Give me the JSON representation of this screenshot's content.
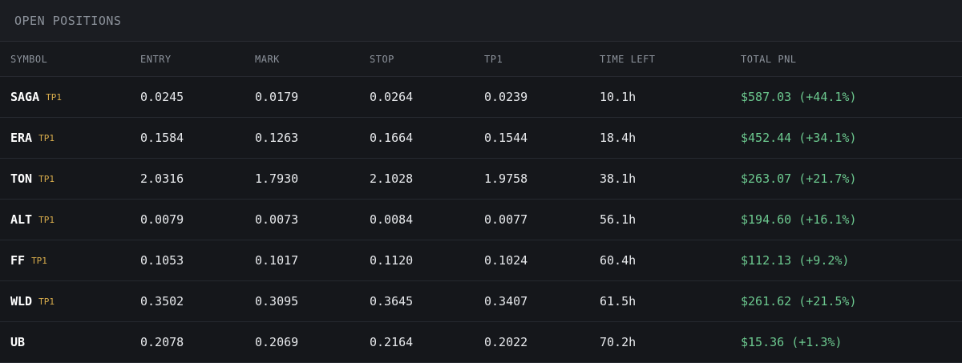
{
  "header": {
    "title": "OPEN POSITIONS"
  },
  "table": {
    "columns": [
      "SYMBOL",
      "ENTRY",
      "MARK",
      "STOP",
      "TP1",
      "TIME LEFT",
      "TOTAL PNL"
    ],
    "rows": [
      {
        "symbol": "SAGA",
        "badge": "TP1",
        "cells": [
          "0.0245",
          "0.0179",
          "0.0264",
          "0.0239",
          "10.1h"
        ],
        "pnl": "$587.03 (+44.1%)"
      },
      {
        "symbol": "ERA",
        "badge": "TP1",
        "cells": [
          "0.1584",
          "0.1263",
          "0.1664",
          "0.1544",
          "18.4h"
        ],
        "pnl": "$452.44 (+34.1%)"
      },
      {
        "symbol": "TON",
        "badge": "TP1",
        "cells": [
          "2.0316",
          "1.7930",
          "2.1028",
          "1.9758",
          "38.1h"
        ],
        "pnl": "$263.07 (+21.7%)"
      },
      {
        "symbol": "ALT",
        "badge": "TP1",
        "cells": [
          "0.0079",
          "0.0073",
          "0.0084",
          "0.0077",
          "56.1h"
        ],
        "pnl": "$194.60 (+16.1%)"
      },
      {
        "symbol": "FF",
        "badge": "TP1",
        "cells": [
          "0.1053",
          "0.1017",
          "0.1120",
          "0.1024",
          "60.4h"
        ],
        "pnl": "$112.13 (+9.2%)"
      },
      {
        "symbol": "WLD",
        "badge": "TP1",
        "cells": [
          "0.3502",
          "0.3095",
          "0.3645",
          "0.3407",
          "61.5h"
        ],
        "pnl": "$261.62 (+21.5%)"
      },
      {
        "symbol": "UB",
        "cells": [
          "0.2078",
          "0.2069",
          "0.2164",
          "0.2022",
          "70.2h"
        ],
        "pnl": "$15.36 (+1.3%)"
      }
    ]
  }
}
